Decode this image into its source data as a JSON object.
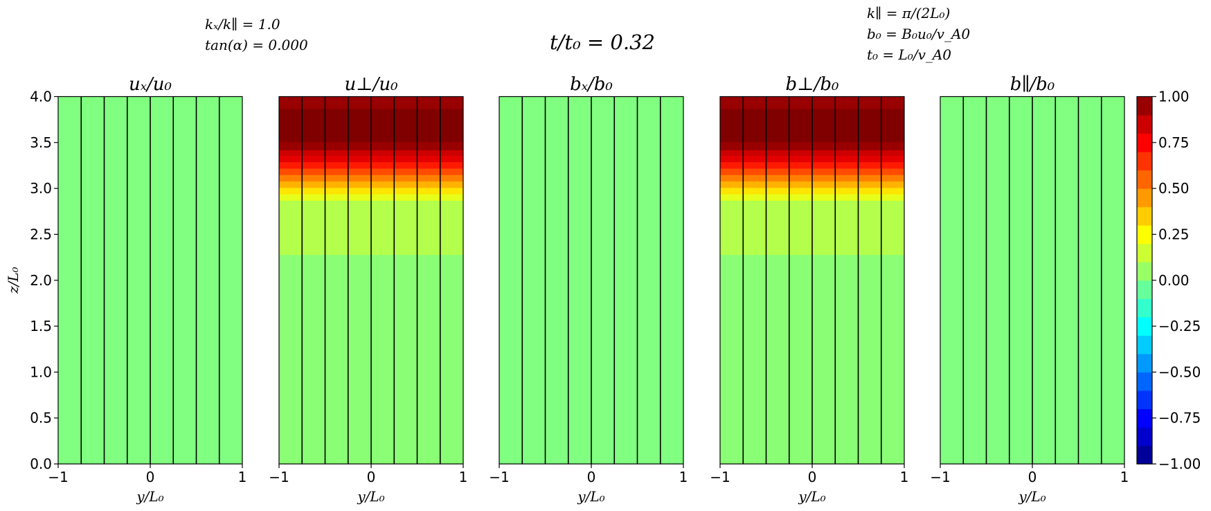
{
  "annotations": {
    "left": [
      "kₓ/k∥ = 1.0",
      "tan(α) = 0.000"
    ],
    "center": "t/t₀ = 0.32",
    "right": [
      "k∥ = π/(2L₀)",
      "b₀ = B₀u₀/v_A0",
      "t₀ = L₀/v_A0"
    ]
  },
  "colorbar": {
    "ticks": [
      "1.00",
      "0.75",
      "0.50",
      "0.25",
      "0.00",
      "−0.25",
      "−0.50",
      "−0.75",
      "−1.00"
    ],
    "range": [
      -1,
      1
    ],
    "levels": 20,
    "colormap": "jet"
  },
  "chart_data": [
    {
      "type": "heatmap",
      "title": "uₓ/u₀",
      "xlabel": "y/L₀",
      "ylabel": "z/L₀",
      "xlim": [
        -1,
        1
      ],
      "ylim": [
        0,
        4
      ],
      "xticks": [
        "−1",
        "0",
        "1"
      ],
      "yticks": [
        "0.0",
        "0.5",
        "1.0",
        "1.5",
        "2.0",
        "2.5",
        "3.0",
        "3.5",
        "4.0"
      ],
      "field_lines_y": [
        -0.75,
        -0.5,
        -0.25,
        0,
        0.25,
        0.5,
        0.75
      ],
      "profile": [
        {
          "z": [
            0,
            4
          ],
          "value": 0.0
        }
      ]
    },
    {
      "type": "heatmap",
      "title": "u⊥/u₀",
      "xlabel": "y/L₀",
      "xlim": [
        -1,
        1
      ],
      "ylim": [
        0,
        4
      ],
      "xticks": [
        "−1",
        "0",
        "1"
      ],
      "field_lines_y": [
        -0.75,
        -0.5,
        -0.25,
        0,
        0.25,
        0.5,
        0.75
      ],
      "profile": [
        {
          "z": [
            0,
            2.28
          ],
          "value": 0.02
        },
        {
          "z": [
            2.28,
            2.87
          ],
          "value": 0.1
        },
        {
          "z": [
            2.87,
            2.94
          ],
          "value": 0.2
        },
        {
          "z": [
            2.94,
            3.01
          ],
          "value": 0.3
        },
        {
          "z": [
            3.01,
            3.08
          ],
          "value": 0.4
        },
        {
          "z": [
            3.08,
            3.15
          ],
          "value": 0.5
        },
        {
          "z": [
            3.15,
            3.22
          ],
          "value": 0.6
        },
        {
          "z": [
            3.22,
            3.29
          ],
          "value": 0.7
        },
        {
          "z": [
            3.29,
            3.36
          ],
          "value": 0.8
        },
        {
          "z": [
            3.36,
            3.42
          ],
          "value": 0.85
        },
        {
          "z": [
            3.42,
            3.51
          ],
          "value": 0.95
        },
        {
          "z": [
            3.51,
            3.87
          ],
          "value": 1.0
        },
        {
          "z": [
            3.87,
            4.0
          ],
          "value": 0.95
        }
      ]
    },
    {
      "type": "heatmap",
      "title": "bₓ/b₀",
      "xlabel": "y/L₀",
      "xlim": [
        -1,
        1
      ],
      "ylim": [
        0,
        4
      ],
      "xticks": [
        "−1",
        "0",
        "1"
      ],
      "field_lines_y": [
        -0.75,
        -0.5,
        -0.25,
        0,
        0.25,
        0.5,
        0.75
      ],
      "profile": [
        {
          "z": [
            0,
            4
          ],
          "value": 0.0
        }
      ]
    },
    {
      "type": "heatmap",
      "title": "b⊥/b₀",
      "xlabel": "y/L₀",
      "xlim": [
        -1,
        1
      ],
      "ylim": [
        0,
        4
      ],
      "xticks": [
        "−1",
        "0",
        "1"
      ],
      "field_lines_y": [
        -0.75,
        -0.5,
        -0.25,
        0,
        0.25,
        0.5,
        0.75
      ],
      "profile": [
        {
          "z": [
            0,
            2.28
          ],
          "value": 0.02
        },
        {
          "z": [
            2.28,
            2.87
          ],
          "value": 0.1
        },
        {
          "z": [
            2.87,
            2.94
          ],
          "value": 0.2
        },
        {
          "z": [
            2.94,
            3.01
          ],
          "value": 0.3
        },
        {
          "z": [
            3.01,
            3.08
          ],
          "value": 0.4
        },
        {
          "z": [
            3.08,
            3.15
          ],
          "value": 0.5
        },
        {
          "z": [
            3.15,
            3.22
          ],
          "value": 0.6
        },
        {
          "z": [
            3.22,
            3.29
          ],
          "value": 0.7
        },
        {
          "z": [
            3.29,
            3.36
          ],
          "value": 0.8
        },
        {
          "z": [
            3.36,
            3.42
          ],
          "value": 0.85
        },
        {
          "z": [
            3.42,
            3.51
          ],
          "value": 0.95
        },
        {
          "z": [
            3.51,
            3.87
          ],
          "value": 1.0
        },
        {
          "z": [
            3.87,
            4.0
          ],
          "value": 0.95
        }
      ]
    },
    {
      "type": "heatmap",
      "title": "b∥/b₀",
      "xlabel": "y/L₀",
      "xlim": [
        -1,
        1
      ],
      "ylim": [
        0,
        4
      ],
      "xticks": [
        "−1",
        "0",
        "1"
      ],
      "field_lines_y": [
        -0.75,
        -0.5,
        -0.25,
        0,
        0.25,
        0.5,
        0.75
      ],
      "profile": [
        {
          "z": [
            0,
            4
          ],
          "value": 0.0
        }
      ]
    }
  ]
}
